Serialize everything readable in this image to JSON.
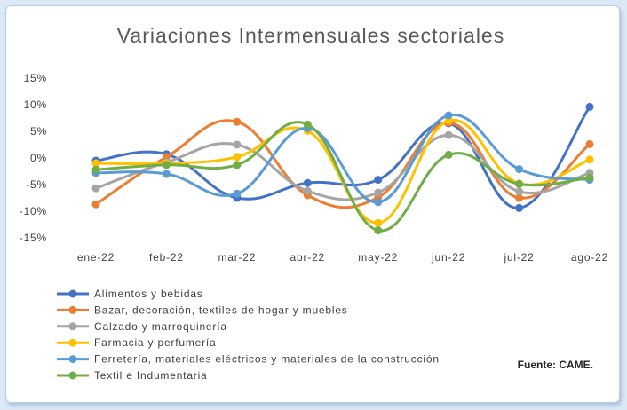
{
  "chart_data": {
    "type": "line",
    "title": "Variaciones Intermensuales sectoriales",
    "source": "Fuente: CAME.",
    "categories": [
      "ene-22",
      "feb-22",
      "mar-22",
      "abr-22",
      "may-22",
      "jun-22",
      "jul-22",
      "ago-22"
    ],
    "ylim": [
      -15,
      15
    ],
    "yticks": [
      "15%",
      "10%",
      "5%",
      "0%",
      "-5%",
      "-10%",
      "-15%"
    ],
    "ytick_values": [
      15,
      10,
      5,
      0,
      -5,
      -10,
      -15
    ],
    "grid": false,
    "legend_position": "bottom-left",
    "smooth": true,
    "series": [
      {
        "name": "Alimentos y bebidas",
        "color": "#4472C4",
        "values": [
          -0.5,
          0.7,
          -7.5,
          -4.7,
          -4.1,
          6.5,
          -9.4,
          9.6
        ]
      },
      {
        "name": "Bazar, decoración, textiles de hogar y muebles",
        "color": "#ED7D31",
        "values": [
          -8.7,
          0.2,
          6.8,
          -7.0,
          -7.4,
          6.6,
          -7.5,
          2.6
        ]
      },
      {
        "name": "Calzado y marroquinería",
        "color": "#A5A5A5",
        "values": [
          -5.7,
          -0.8,
          2.5,
          -6.2,
          -6.5,
          4.3,
          -6.3,
          -2.8
        ]
      },
      {
        "name": "Farmacia y perfumería",
        "color": "#FFC000",
        "values": [
          -1.0,
          -1.0,
          0.2,
          5.1,
          -12.2,
          7.0,
          -4.8,
          -0.3
        ]
      },
      {
        "name": "Ferretería, materiales eléctricos y materiales de la construcción",
        "color": "#5B9BD5",
        "values": [
          -2.8,
          -3.0,
          -6.7,
          5.6,
          -8.3,
          8.0,
          -2.1,
          -4.1
        ]
      },
      {
        "name": "Textil e Indumentaria",
        "color": "#70AD47",
        "values": [
          -2.2,
          -1.3,
          -1.3,
          6.3,
          -13.6,
          0.6,
          -4.9,
          -3.7
        ]
      }
    ]
  }
}
